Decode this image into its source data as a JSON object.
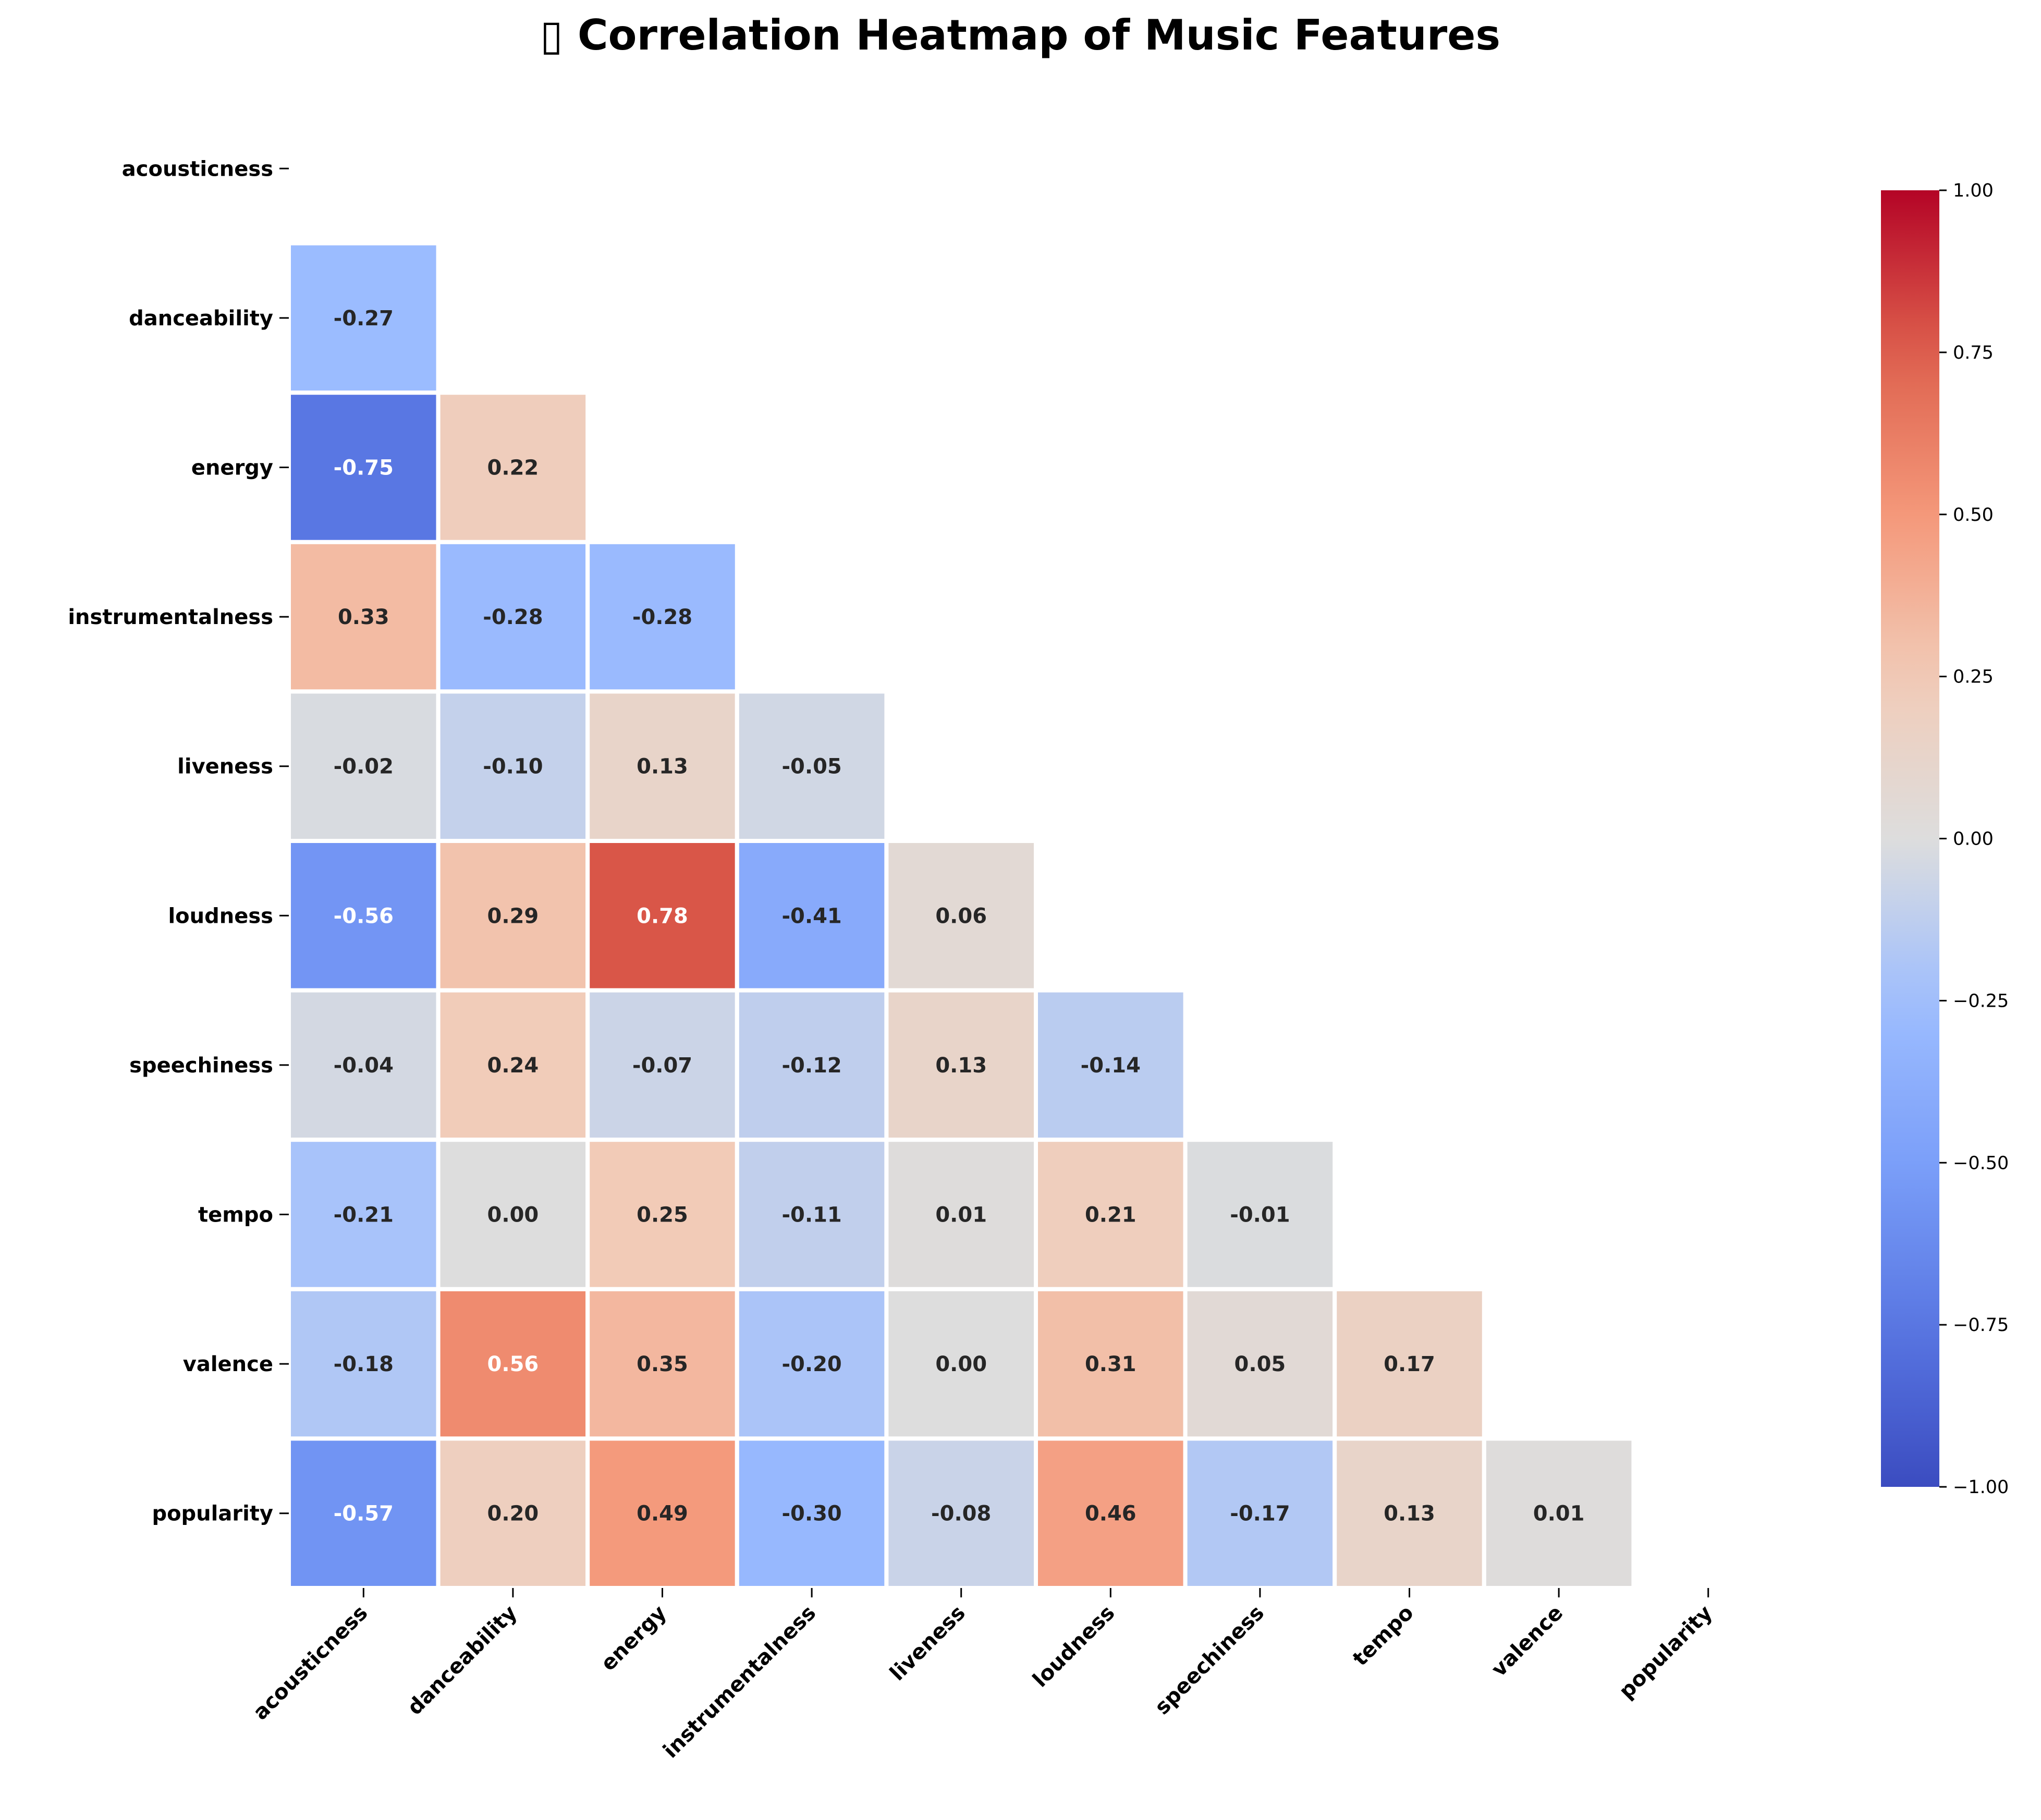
{
  "chart_data": {
    "type": "heatmap",
    "title": "▯ Correlation Heatmap of Music Features",
    "labels": [
      "acousticness",
      "danceability",
      "energy",
      "instrumentalness",
      "liveness",
      "loudness",
      "speechiness",
      "tempo",
      "valence",
      "popularity"
    ],
    "mask": "upper-triangle-including-diagonal",
    "lower_triangle": [
      [],
      [
        -0.27
      ],
      [
        -0.75,
        0.22
      ],
      [
        0.33,
        -0.28,
        -0.28
      ],
      [
        -0.02,
        -0.1,
        0.13,
        -0.05
      ],
      [
        -0.56,
        0.29,
        0.78,
        -0.41,
        0.06
      ],
      [
        -0.04,
        0.24,
        -0.07,
        -0.12,
        0.13,
        -0.14
      ],
      [
        -0.21,
        0.0,
        0.25,
        -0.11,
        0.01,
        0.21,
        -0.01
      ],
      [
        -0.18,
        0.56,
        0.35,
        -0.2,
        0.0,
        0.31,
        0.05,
        0.17
      ],
      [
        -0.57,
        0.2,
        0.49,
        -0.3,
        -0.08,
        0.46,
        -0.17,
        0.13,
        0.01
      ]
    ],
    "colormap": "coolwarm",
    "vmin": -1,
    "vmax": 1,
    "colorbar_ticks": [
      "1.00",
      "0.75",
      "0.50",
      "0.25",
      "0.00",
      "−0.25",
      "−0.50",
      "−0.75",
      "−1.00"
    ],
    "colorbar_tick_values": [
      1,
      0.75,
      0.5,
      0.25,
      0,
      -0.25,
      -0.5,
      -0.75,
      -1
    ],
    "annotation_format": "0.00"
  }
}
